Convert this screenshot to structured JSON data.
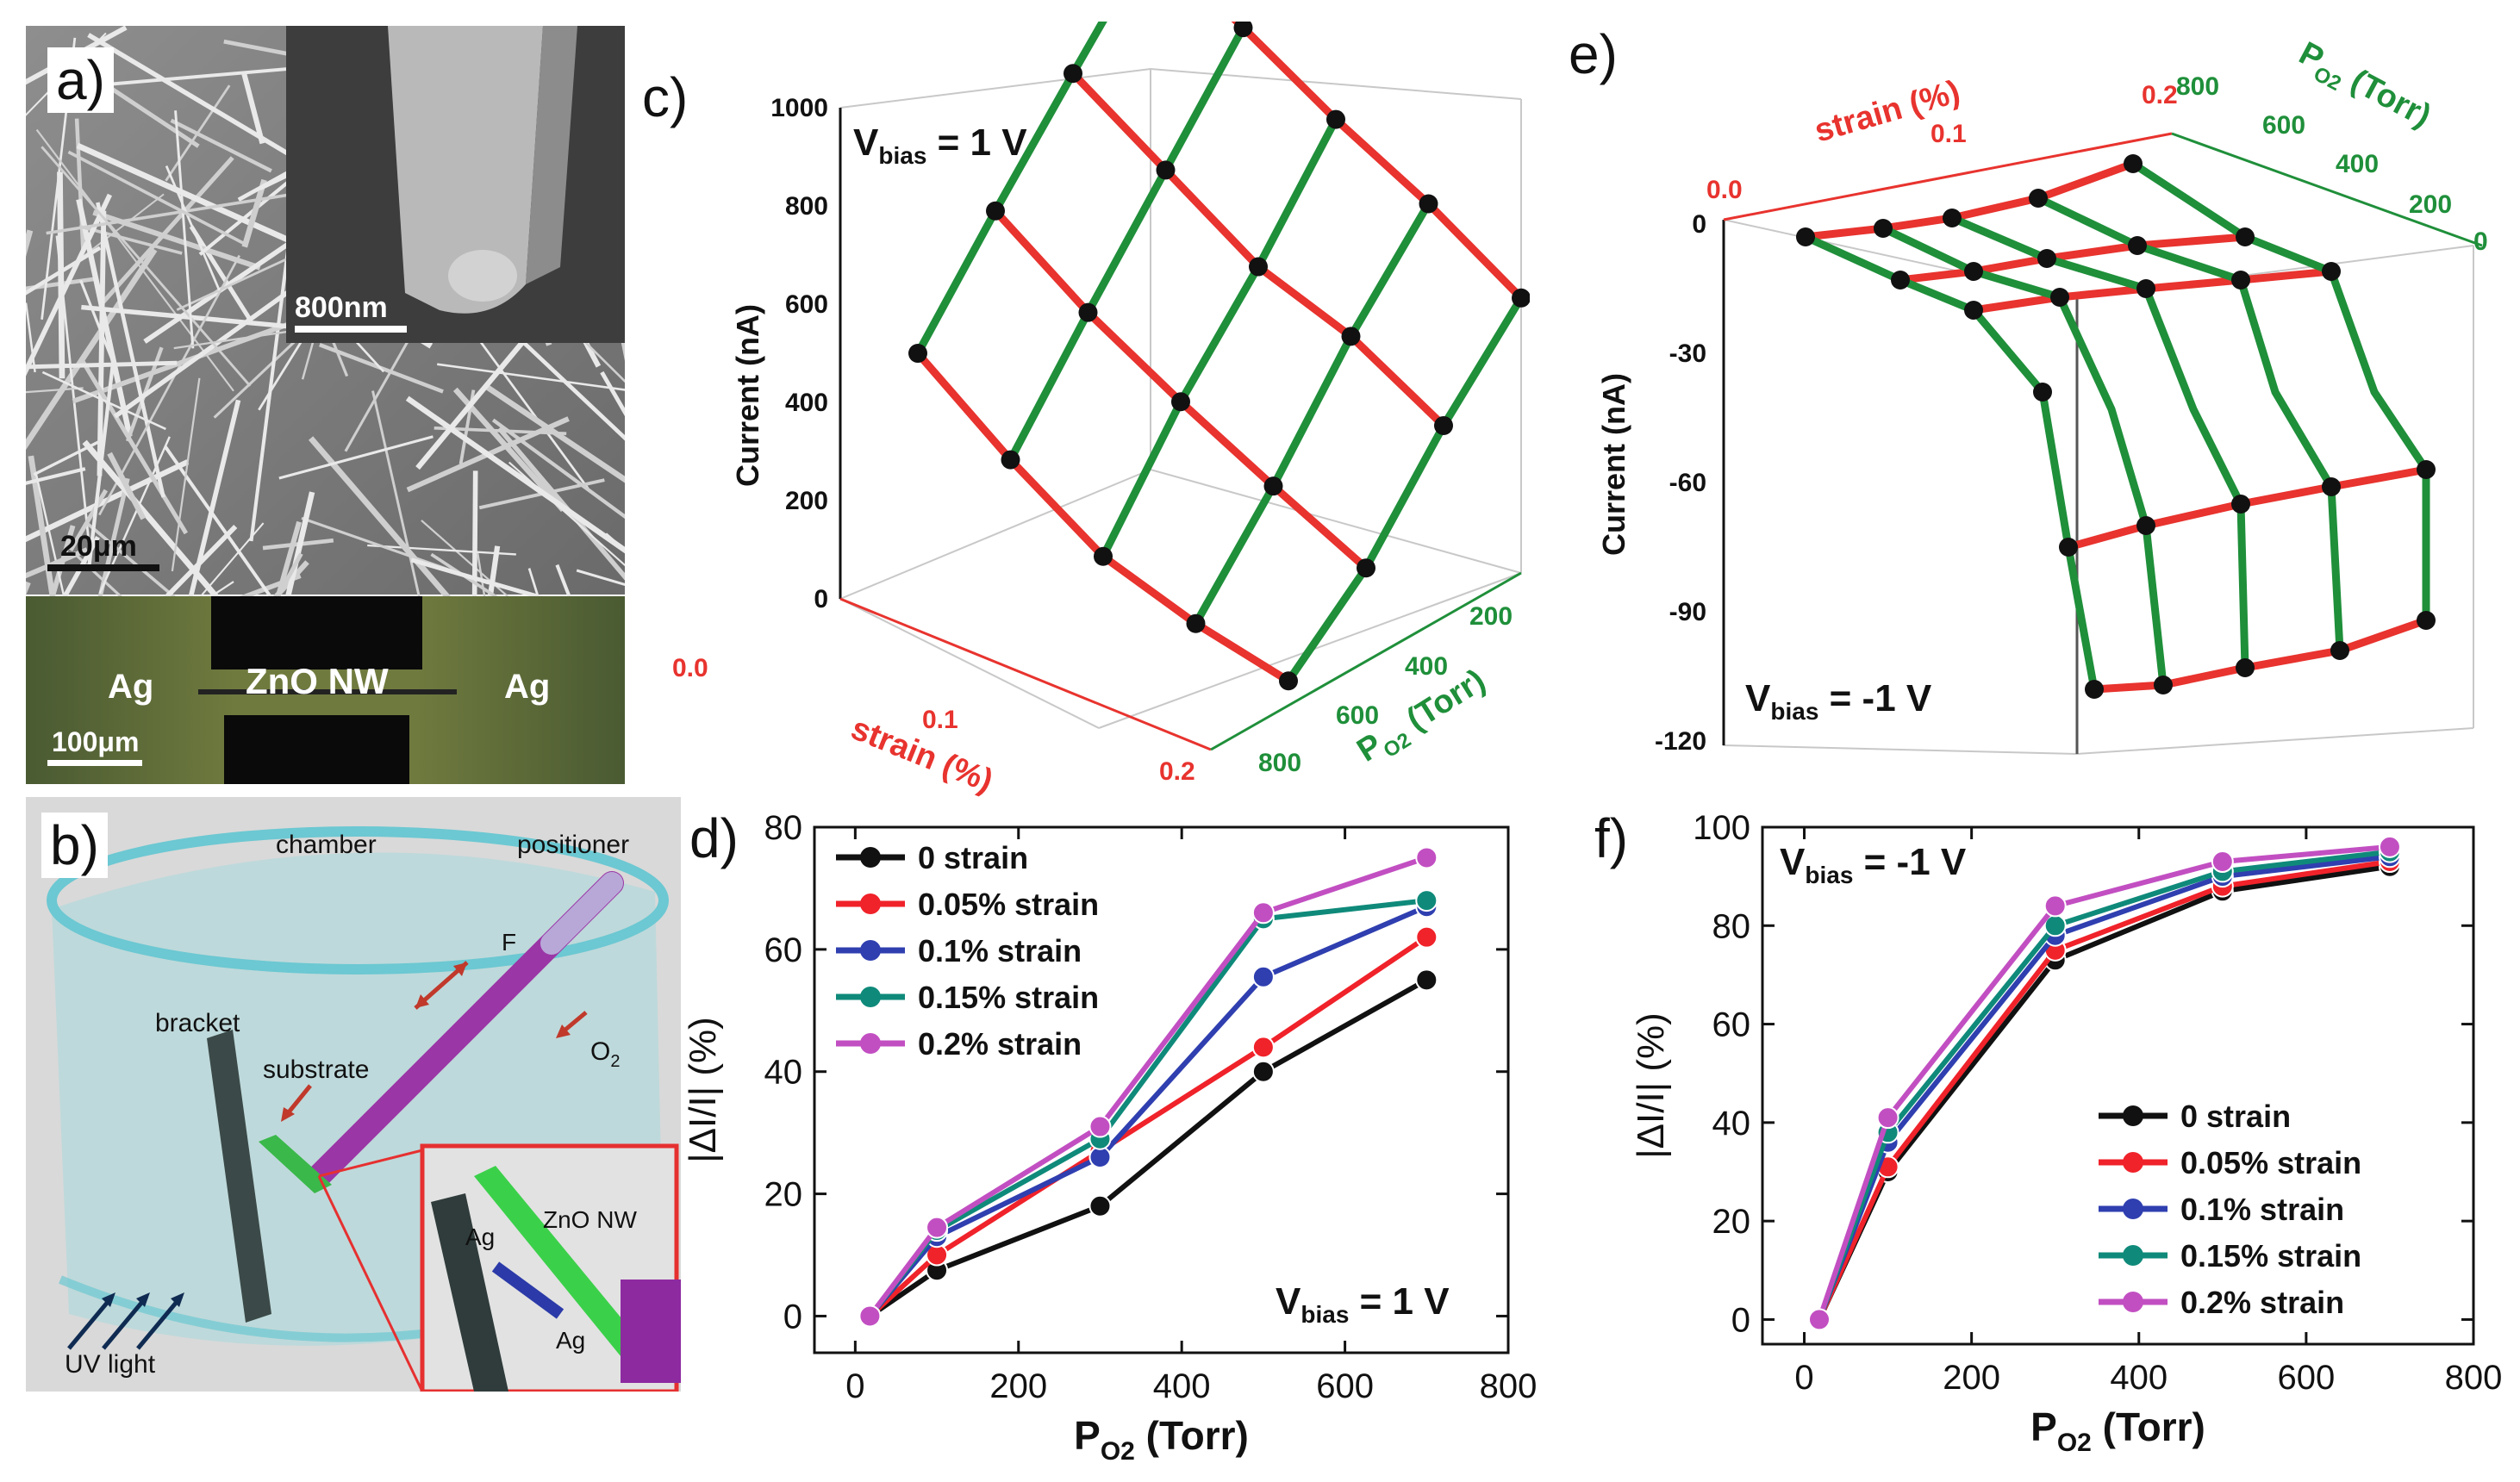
{
  "panel_labels": {
    "a": "a)",
    "b": "b)",
    "c": "c)",
    "d": "d)",
    "e": "e)",
    "f": "f)"
  },
  "panel_a": {
    "scale_main": "20μm",
    "scale_inset": "800nm",
    "scale_optical": "100μm",
    "label_left": "Ag",
    "label_center": "ZnO NW",
    "label_right": "Ag"
  },
  "panel_b": {
    "chamber": "chamber",
    "positioner": "positioner",
    "force": "F",
    "bracket": "bracket",
    "substrate": "substrate",
    "o2": "O",
    "o2_sub": "2",
    "uv": "UV light",
    "inset_ag1": "Ag",
    "inset_zno": "ZnO NW",
    "inset_ag2": "Ag"
  },
  "colors": {
    "strain_red": "#e8332e",
    "po2_green": "#1f8f3a",
    "black": "#111111",
    "s0": "#111111",
    "s005": "#f0222a",
    "s01": "#2f3fb0",
    "s015": "#0f8a7a",
    "s02": "#c24fc2"
  },
  "chart_data": [
    {
      "panel": "c",
      "type": "surface3d",
      "vbias_main": "V",
      "vbias_sub": "bias",
      "vbias_value": " = 1 V",
      "zlabel": "Current (nA)",
      "zticks": [
        "0",
        "200",
        "400",
        "600",
        "800",
        "1000"
      ],
      "strain_label": "strain (%)",
      "strain_ticks": [
        "0.0",
        "0.1",
        "0.2"
      ],
      "po2_label_main": "P",
      "po2_label_sub": "O2",
      "po2_label_unit": " (Torr)",
      "po2_ticks": [
        "200",
        "400",
        "600",
        "800"
      ],
      "strain_values": [
        0.0,
        0.05,
        0.1,
        0.15,
        0.2
      ],
      "po2_values": [
        200,
        400,
        600,
        800
      ],
      "current_nA": [
        [
          410,
          610,
          800,
          985
        ],
        [
          270,
          480,
          680,
          880
        ],
        [
          150,
          375,
          560,
          770
        ],
        [
          90,
          280,
          495,
          675
        ],
        [
          50,
          190,
          390,
          560
        ]
      ]
    },
    {
      "panel": "d",
      "type": "line",
      "x": [
        18,
        100,
        300,
        500,
        700
      ],
      "series": [
        {
          "name": "0 strain",
          "values": [
            0,
            7.5,
            18,
            40,
            55
          ]
        },
        {
          "name": "0.05% strain",
          "values": [
            0,
            10,
            27,
            44,
            62
          ]
        },
        {
          "name": "0.1% strain",
          "values": [
            0,
            13,
            26,
            55.5,
            67
          ]
        },
        {
          "name": "0.15% strain",
          "values": [
            0,
            14,
            29,
            65,
            68
          ]
        },
        {
          "name": "0.2% strain",
          "values": [
            0,
            14.5,
            31,
            66,
            75
          ]
        }
      ],
      "xlabel_main": "P",
      "xlabel_sub": "O2",
      "xlabel_unit": " (Torr)",
      "ylabel": "|ΔI/I| (%)",
      "xlim": [
        -50,
        800
      ],
      "ylim": [
        -6,
        80
      ],
      "xticks": [
        "0",
        "200",
        "400",
        "600",
        "800"
      ],
      "yticks": [
        "0",
        "20",
        "40",
        "60",
        "80"
      ],
      "legend_position": "top-left",
      "vbias_main": "V",
      "vbias_sub": "bias",
      "vbias_value": " = 1 V"
    },
    {
      "panel": "e",
      "type": "surface3d",
      "vbias_main": "V",
      "vbias_sub": "bias",
      "vbias_value": " = -1 V",
      "zlabel": "Current (nA)",
      "zticks": [
        "0",
        "-30",
        "-60",
        "-90",
        "-120"
      ],
      "strain_label": "strain (%)",
      "strain_ticks": [
        "0.0",
        "0.1",
        "0.2"
      ],
      "po2_label_main": "P",
      "po2_label_sub": "O2",
      "po2_label_unit": " (Torr)",
      "po2_ticks": [
        "800",
        "600",
        "400",
        "200",
        "0"
      ]
    },
    {
      "panel": "f",
      "type": "line",
      "x": [
        18,
        100,
        300,
        500,
        700
      ],
      "series": [
        {
          "name": "0 strain",
          "values": [
            0,
            30,
            73,
            87,
            92
          ]
        },
        {
          "name": "0.05% strain",
          "values": [
            0,
            31,
            75,
            88,
            93
          ]
        },
        {
          "name": "0.1% strain",
          "values": [
            0,
            36,
            78,
            90,
            94
          ]
        },
        {
          "name": "0.15% strain",
          "values": [
            0,
            38,
            80,
            91,
            95
          ]
        },
        {
          "name": "0.2% strain",
          "values": [
            0,
            41,
            84,
            93,
            96
          ]
        }
      ],
      "xlabel_main": "P",
      "xlabel_sub": "O2",
      "xlabel_unit": " (Torr)",
      "ylabel": "|ΔI/I| (%)",
      "xlim": [
        -50,
        800
      ],
      "ylim": [
        -5,
        100
      ],
      "xticks": [
        "0",
        "200",
        "400",
        "600",
        "800"
      ],
      "yticks": [
        "0",
        "20",
        "40",
        "60",
        "80",
        "100"
      ],
      "legend_position": "bottom-right",
      "vbias_main": "V",
      "vbias_sub": "bias",
      "vbias_value": " = -1 V"
    }
  ]
}
